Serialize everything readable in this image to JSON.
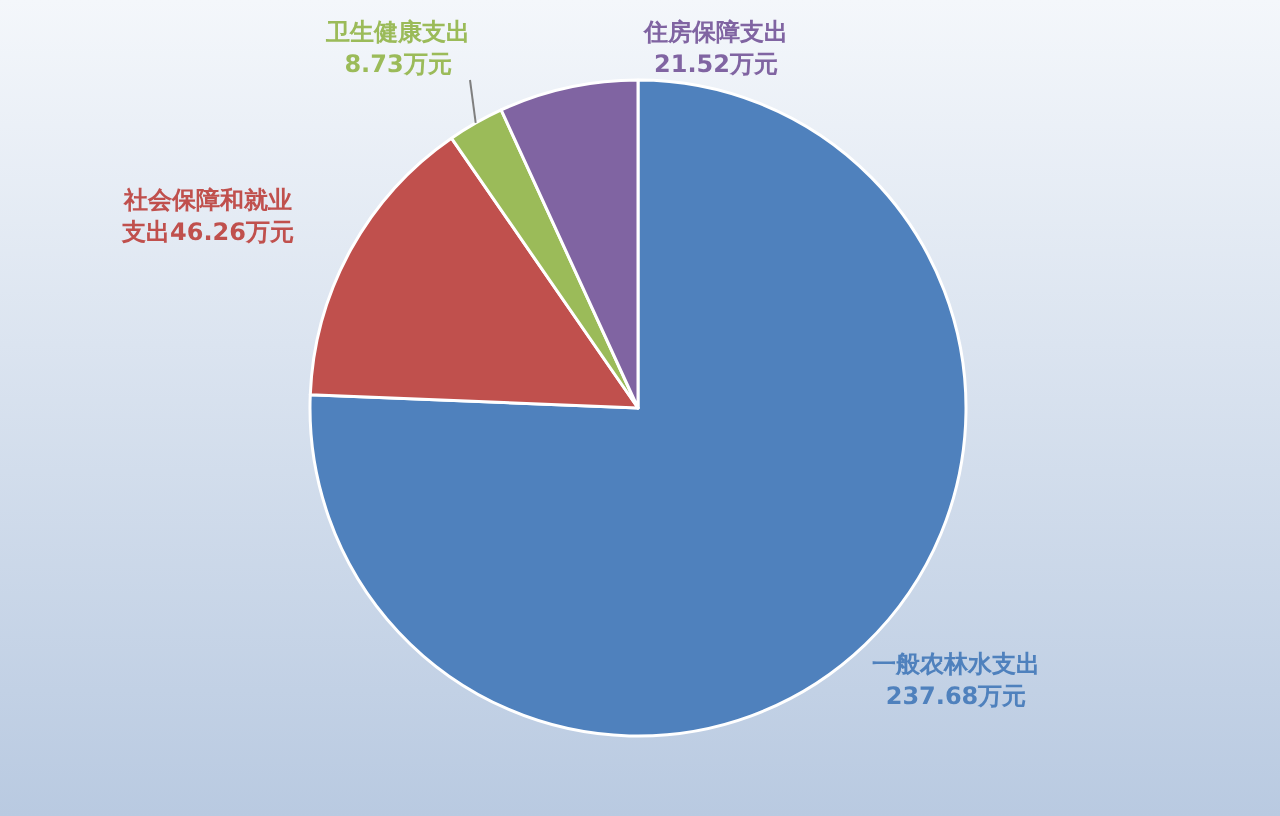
{
  "chart_data": {
    "type": "pie",
    "categories": [
      "一般农林水支出",
      "社会保障和就业支出",
      "卫生健康支出",
      "住房保障支出"
    ],
    "values": [
      237.68,
      46.26,
      8.73,
      21.52
    ],
    "value_labels": [
      "237.68万元",
      "46.26万元",
      "8.73万元",
      "21.52万元"
    ],
    "colors": [
      "#4f81bd",
      "#c0504d",
      "#9bbb59",
      "#8064a2"
    ],
    "legend": false
  }
}
